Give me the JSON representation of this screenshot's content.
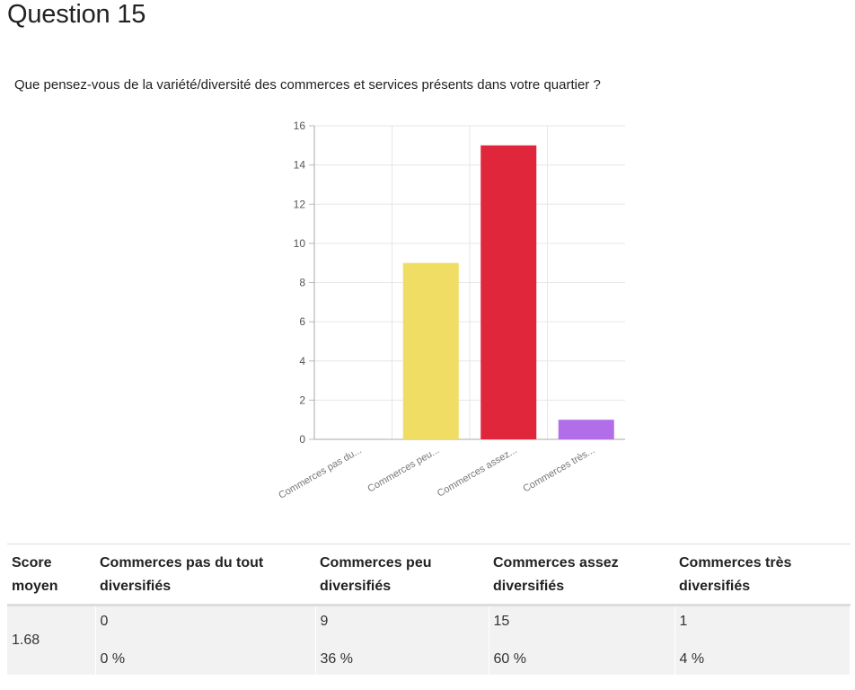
{
  "page": {
    "title": "Question 15",
    "question": "Que pensez-vous de la variété/diversité des commerces et services présents dans votre quartier ?"
  },
  "chart_data": {
    "type": "bar",
    "categories": [
      "Commerces pas du...",
      "Commerces peu...",
      "Commerces assez...",
      "Commerces très..."
    ],
    "values": [
      0,
      9,
      15,
      1
    ],
    "colors": [
      "#e9d95c",
      "#f0dd63",
      "#e0263a",
      "#b26ee8"
    ],
    "ylim": [
      0,
      16
    ],
    "yticks": [
      0,
      2,
      4,
      6,
      8,
      10,
      12,
      14,
      16
    ],
    "grid": true
  },
  "table": {
    "headers": [
      "Score moyen",
      "Commerces pas du tout diversifiés",
      "Commerces peu diversifiés",
      "Commerces assez diversifiés",
      "Commerces très diversifiés"
    ],
    "score": "1.68",
    "counts": [
      "0",
      "9",
      "15",
      "1"
    ],
    "percents": [
      "0 %",
      "36 %",
      "60 %",
      "4 %"
    ]
  }
}
